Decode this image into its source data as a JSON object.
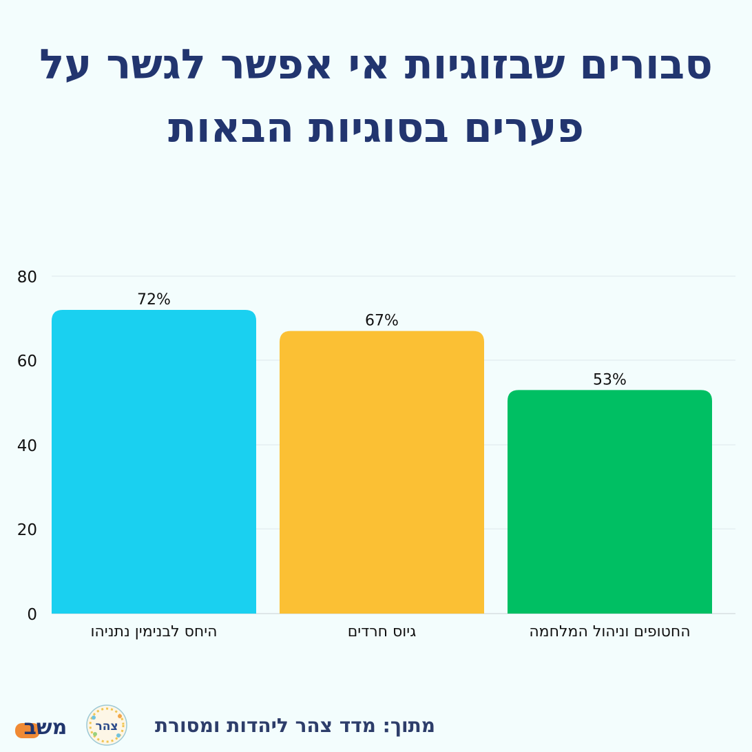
{
  "title_line1": "סבורים שבזוגיות אי אפשר לגשר על",
  "title_line2": "פערים בסוגיות הבאות",
  "footer": {
    "source": "מתוך: מדד צהר ליהדות ומסורת",
    "seal_text": "צהר",
    "brand_text": "משב"
  },
  "colors": {
    "title": "#22356f",
    "bar_blue": "#1ad0f0",
    "bar_yellow": "#fbc034",
    "bar_green": "#00bf63"
  },
  "chart_data": {
    "type": "bar",
    "categories": [
      "היחס לבנימין נתניהו",
      "גיוס חרדים",
      "החטופים וניהול המלחמה"
    ],
    "values": [
      72,
      67,
      53
    ],
    "data_labels": [
      "72%",
      "67%",
      "53%"
    ],
    "bar_colors": [
      "#1ad0f0",
      "#fbc034",
      "#00bf63"
    ],
    "ylim": [
      0,
      80
    ],
    "yticks": [
      "0",
      "20",
      "40",
      "60",
      "80"
    ],
    "grid": true,
    "xlabel": "",
    "ylabel": ""
  }
}
